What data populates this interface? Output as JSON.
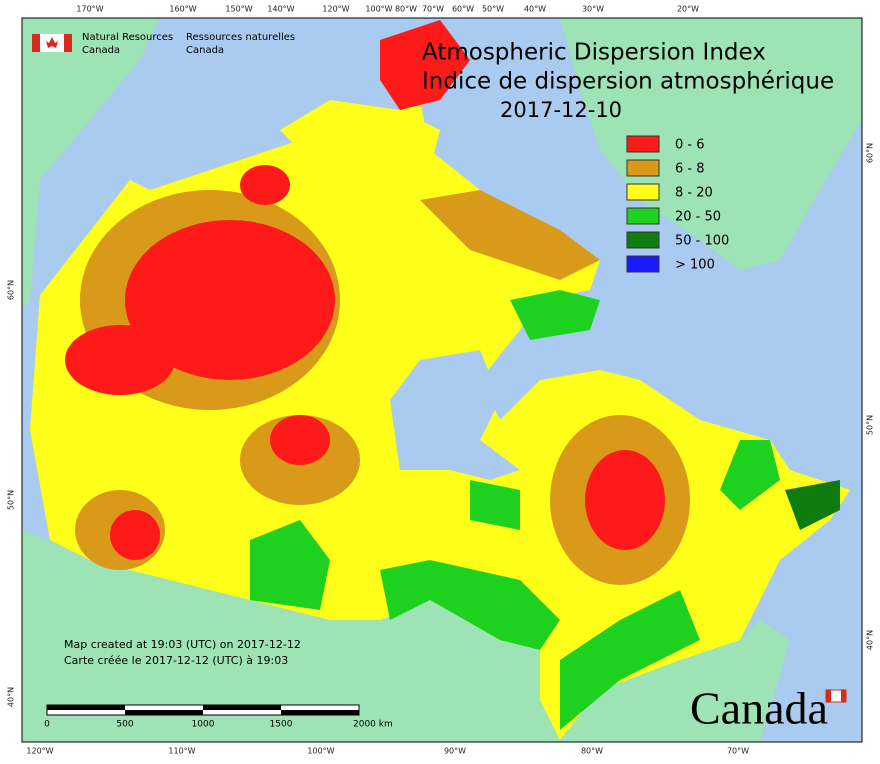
{
  "header": {
    "org_en": [
      "Natural Resources",
      "Canada"
    ],
    "org_fr": [
      "Ressources naturelles",
      "Canada"
    ]
  },
  "title": {
    "en": "Atmospheric Dispersion Index",
    "fr": "Indice de dispersion atmosphérique",
    "date": "2017-12-10"
  },
  "legend": [
    {
      "label": "0 - 6",
      "color": "#ff1a1a"
    },
    {
      "label": "6 - 8",
      "color": "#d99a1a"
    },
    {
      "label": "8 - 20",
      "color": "#ffff1a"
    },
    {
      "label": "20 - 50",
      "color": "#1fd11f"
    },
    {
      "label": "50 - 100",
      "color": "#0f7a0f"
    },
    {
      "label": "> 100",
      "color": "#1a1aff"
    }
  ],
  "graticule": {
    "top": [
      "170°W",
      "160°W",
      "150°W",
      "140°W",
      "120°W",
      "100°W",
      "80°W",
      "70°W",
      "60°W",
      "50°W",
      "40°W",
      "30°W",
      "20°W"
    ],
    "bottom": [
      "120°W",
      "110°W",
      "100°W",
      "90°W",
      "80°W",
      "70°W"
    ],
    "left": [
      "60°N",
      "50°N",
      "40°N"
    ],
    "right": [
      "60°N",
      "50°N",
      "40°N"
    ]
  },
  "footer": {
    "created_en": "Map created at 19:03 (UTC) on 2017-12-12",
    "created_fr": "Carte créée le 2017-12-12 (UTC) à 19:03"
  },
  "scale_bar": {
    "labels": [
      "0",
      "500",
      "1000",
      "1500",
      "2000 km"
    ]
  },
  "wordmark": "Canada"
}
